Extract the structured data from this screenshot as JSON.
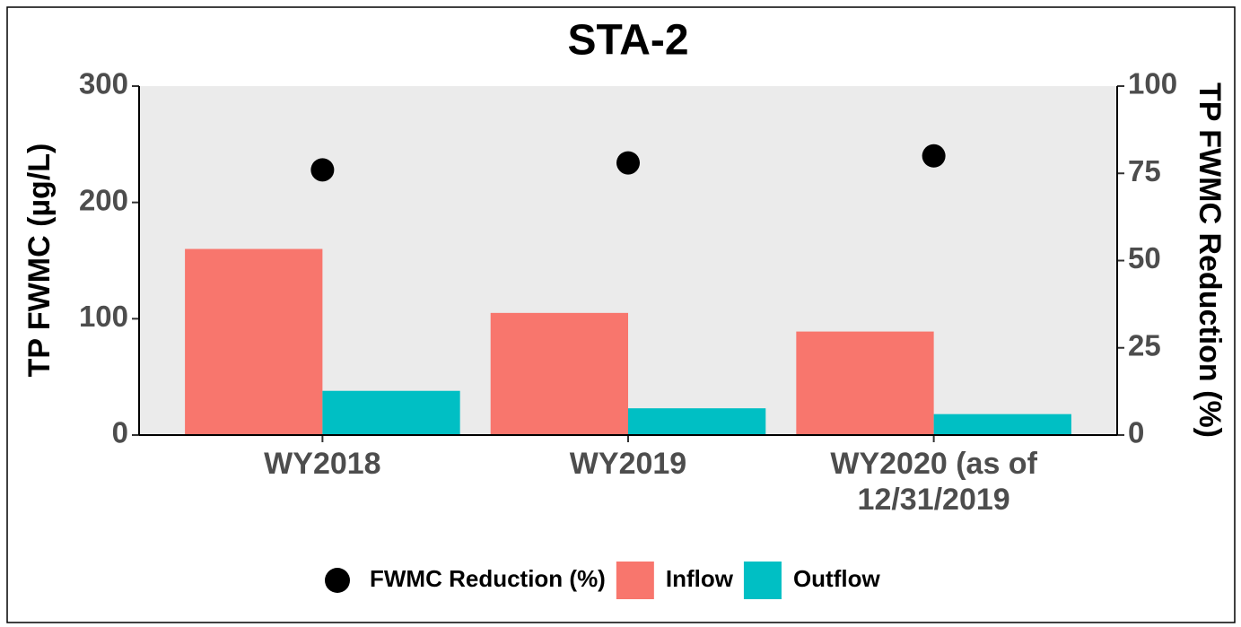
{
  "chart_data": {
    "type": "bar",
    "title": "STA-2",
    "categories": [
      "WY2018",
      "WY2019",
      "WY2020 (as of\n12/31/2019"
    ],
    "series": [
      {
        "name": "FWMC Reduction (%)",
        "mark": "point",
        "color": "#000000",
        "axis": "y2",
        "values": [
          76,
          78,
          80
        ]
      },
      {
        "name": "Inflow",
        "color": "#F8766D",
        "values": [
          160,
          105,
          89
        ]
      },
      {
        "name": "Outflow",
        "color": "#00BFC4",
        "values": [
          38,
          23,
          18
        ]
      }
    ],
    "ylabel": "TP FWMC (µg/L)",
    "y2label": "TP FWMC Reduction (%)",
    "ylim": [
      0,
      300
    ],
    "yticks": [
      0,
      100,
      200,
      300
    ],
    "y2lim": [
      0,
      100
    ],
    "y2ticks": [
      0,
      25,
      50,
      75,
      100
    ],
    "grid": false,
    "legend": "bottom"
  }
}
